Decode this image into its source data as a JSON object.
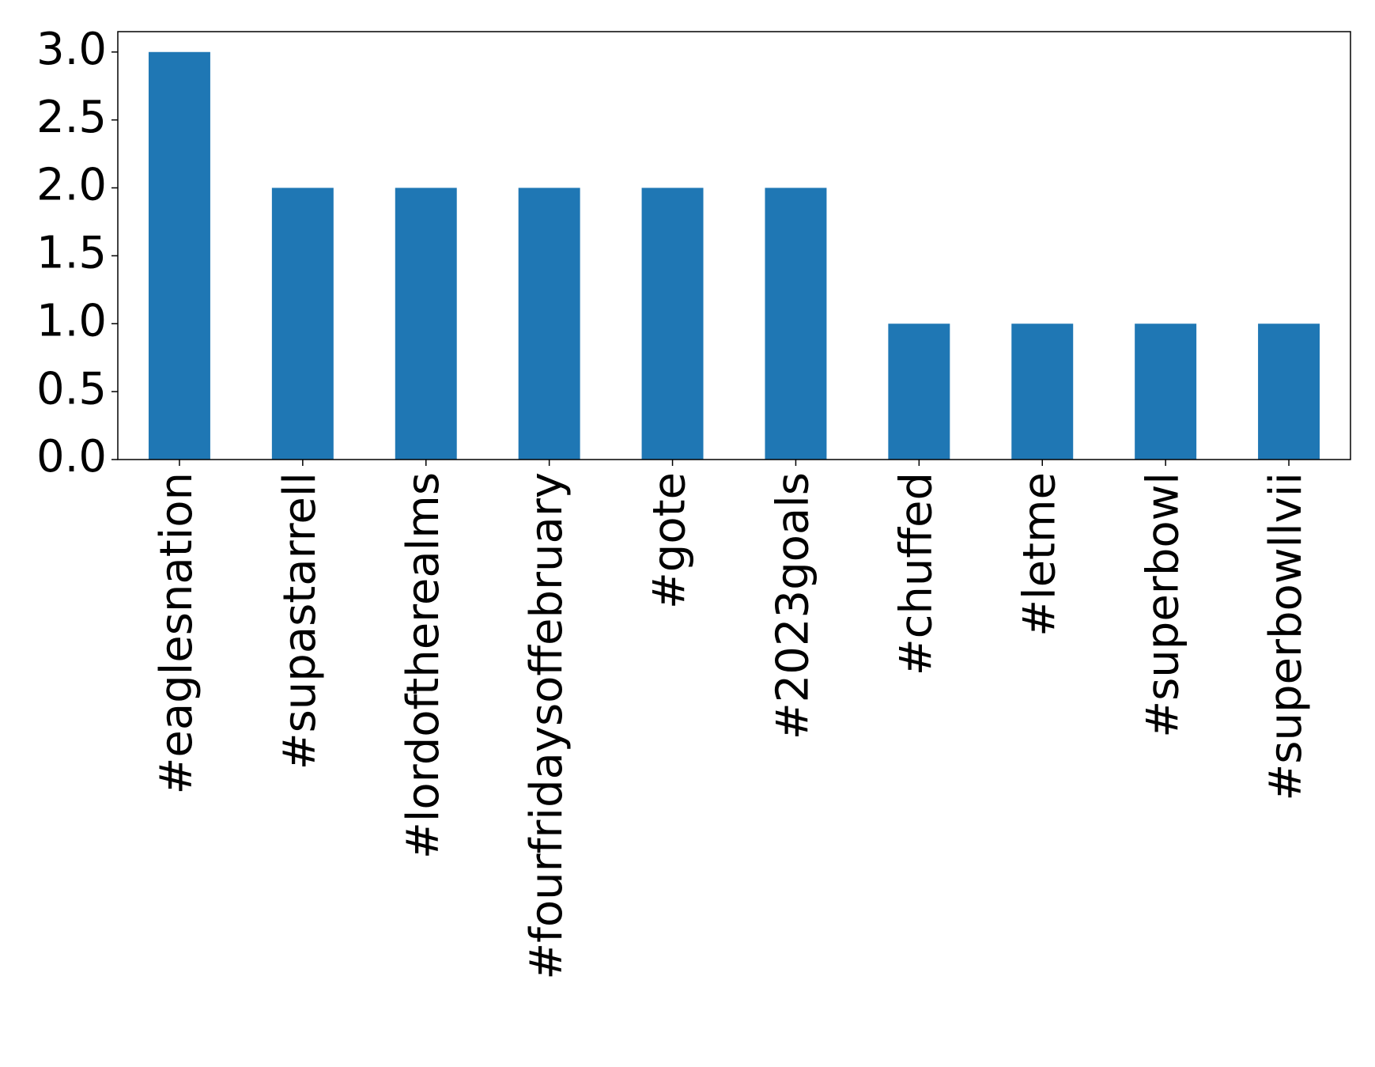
{
  "chart_data": {
    "type": "bar",
    "categories": [
      "#eaglesnation",
      "#supastarrell",
      "#lordoftherealms",
      "#fourfridaysoffebruary",
      "#gote",
      "#2023goals",
      "#chuffed",
      "#letme",
      "#superbowl",
      "#superbowllvii"
    ],
    "values": [
      3,
      2,
      2,
      2,
      2,
      2,
      1,
      1,
      1,
      1
    ],
    "color": "#1f77b4",
    "ylim": [
      0,
      3.15
    ],
    "yticks": [
      {
        "value": 0,
        "label": "0.0"
      },
      0.5,
      {
        "value": 1,
        "label": "1.0"
      },
      1.5,
      {
        "value": 2,
        "label": "2.0"
      },
      2.5,
      {
        "value": 3,
        "label": "3.0"
      }
    ],
    "grid": false
  }
}
